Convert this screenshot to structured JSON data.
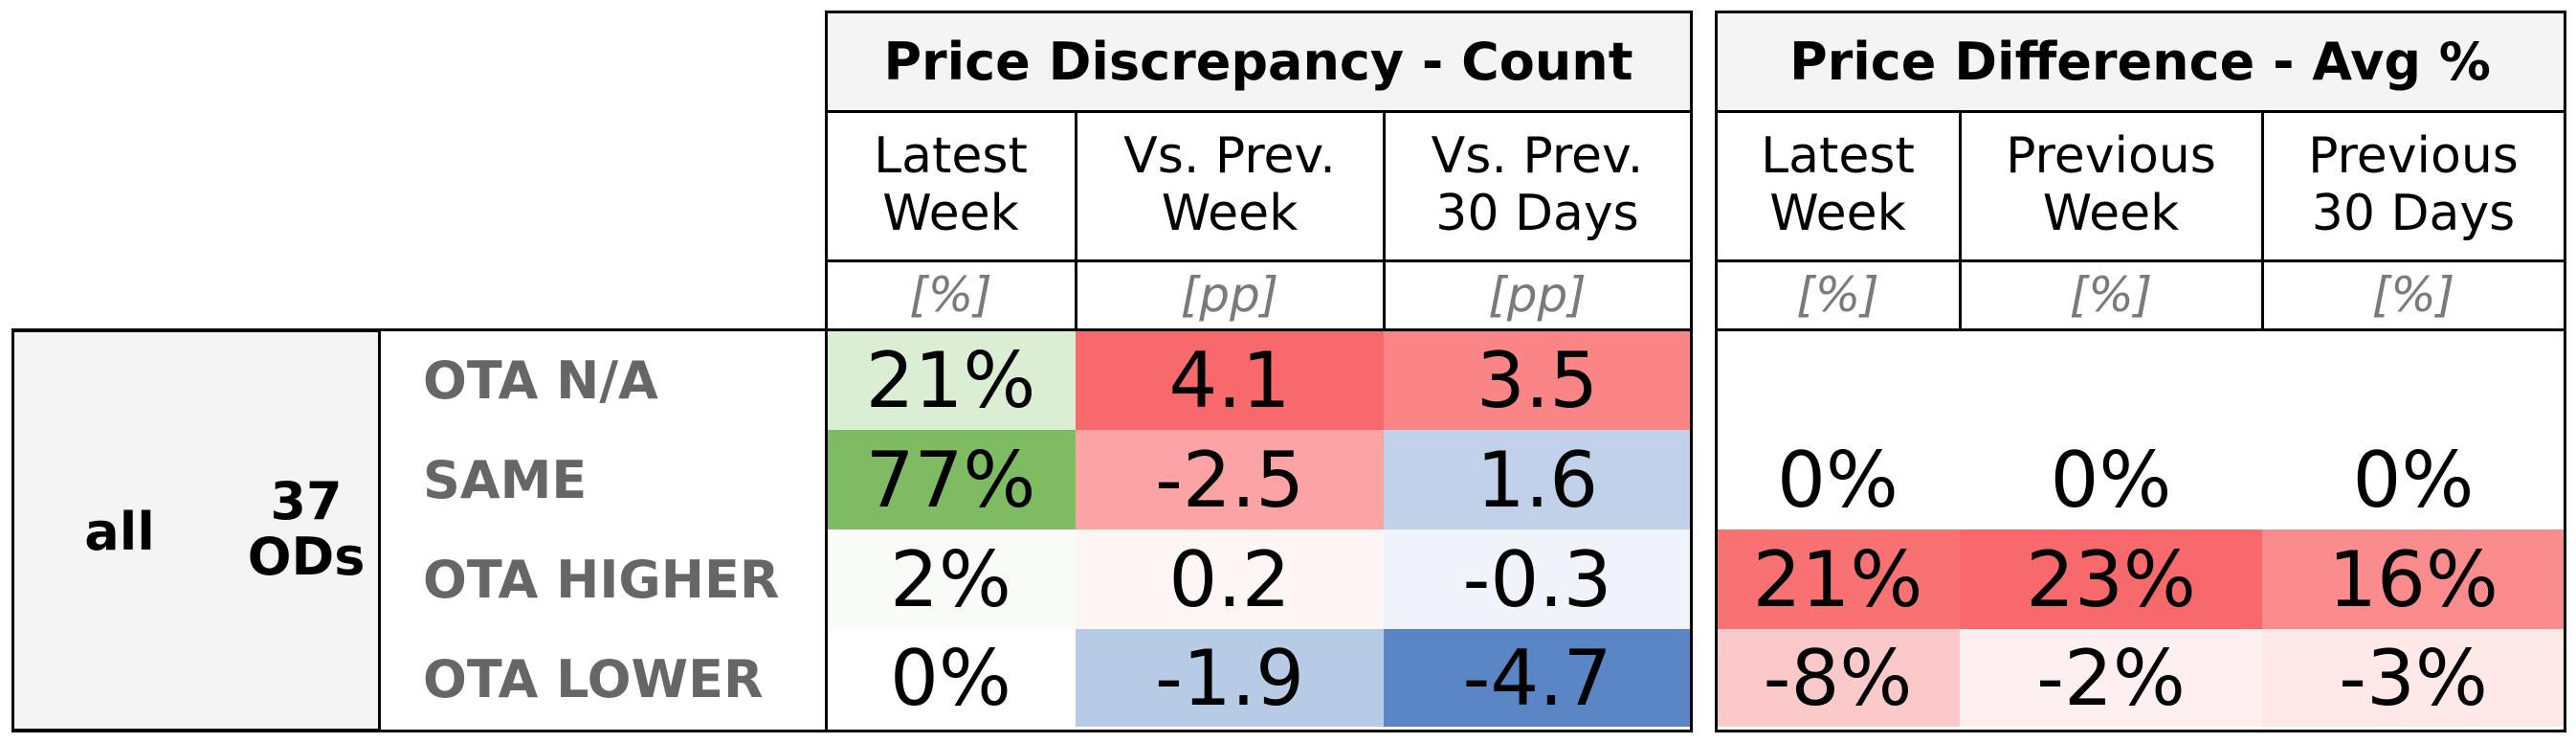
{
  "chart_data": {
    "type": "table",
    "group_label": "all",
    "group_count": "37\nODs",
    "row_labels": [
      "OTA N/A",
      "SAME",
      "OTA HIGHER",
      "OTA LOWER"
    ],
    "tables": [
      {
        "title": "Price Discrepancy - Count",
        "columns": [
          {
            "header": "Latest\nWeek",
            "unit": "[%]"
          },
          {
            "header": "Vs. Prev.\nWeek",
            "unit": "[pp]"
          },
          {
            "header": "Vs. Prev.\n30 Days",
            "unit": "[pp]"
          }
        ],
        "rows": [
          [
            "21%",
            "4.1",
            "3.5"
          ],
          [
            "77%",
            "-2.5",
            "1.6"
          ],
          [
            "2%",
            "0.2",
            "-0.3"
          ],
          [
            "0%",
            "-1.9",
            "-4.7"
          ]
        ],
        "cell_colors": [
          [
            "#dbedd3",
            "#f8696b",
            "#fa8486"
          ],
          [
            "#7fbb62",
            "#fba3a5",
            "#c0d1e9"
          ],
          [
            "#f8fbf7",
            "#fef5f5",
            "#f0f3f9"
          ],
          [
            "#ffffff",
            "#b8cbe6",
            "#5a86c5"
          ]
        ]
      },
      {
        "title": "Price Difference - Avg %",
        "columns": [
          {
            "header": "Latest\nWeek",
            "unit": "[%]"
          },
          {
            "header": "Previous\nWeek",
            "unit": "[%]"
          },
          {
            "header": "Previous\n30 Days",
            "unit": "[%]"
          }
        ],
        "rows": [
          [
            "",
            "",
            ""
          ],
          [
            "0%",
            "0%",
            "0%"
          ],
          [
            "21%",
            "23%",
            "16%"
          ],
          [
            "-8%",
            "-2%",
            "-3%"
          ]
        ],
        "cell_colors": [
          [
            "#ffffff",
            "#ffffff",
            "#ffffff"
          ],
          [
            "#ffffff",
            "#ffffff",
            "#ffffff"
          ],
          [
            "#f87173",
            "#f8696b",
            "#fa8c8e"
          ],
          [
            "#fcc9ca",
            "#fef0f0",
            "#fee8e8"
          ]
        ]
      }
    ]
  }
}
